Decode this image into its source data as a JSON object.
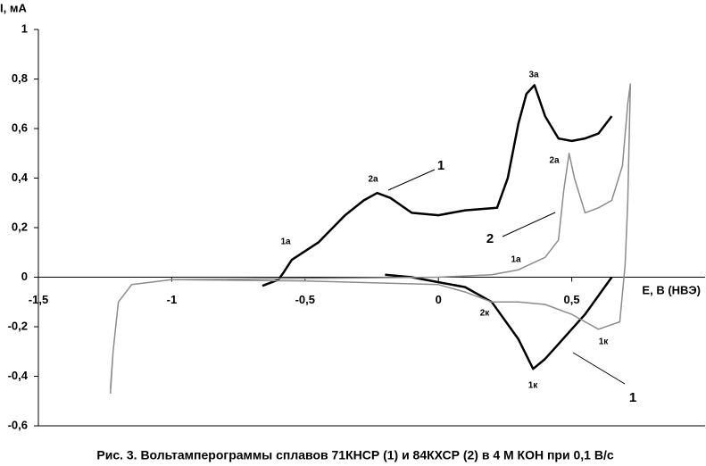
{
  "chart_data": {
    "type": "line",
    "title": "Рис. 3. Вольтамперограммы сплавов 71КНСР (1) и 84КХСР (2) в 4 М КОН при 0,1 В/с",
    "x_label": "E, В (НВЭ)",
    "y_label": "I, мА",
    "xlim": [
      -1.5,
      1.0
    ],
    "ylim": [
      -0.6,
      1
    ],
    "xticks": [
      {
        "value": -1.5,
        "label": "-1,5"
      },
      -1,
      {
        "value": -0.5,
        "label": "-0,5"
      },
      0,
      {
        "value": 0.5,
        "label": "0,5"
      }
    ],
    "yticks": [
      {
        "value": -0.6,
        "label": "-0,6"
      },
      {
        "value": -0.4,
        "label": "-0,4"
      },
      {
        "value": -0.2,
        "label": "-0,2"
      },
      0,
      {
        "value": 0.2,
        "label": "0,2"
      },
      {
        "value": 0.4,
        "label": "0,4"
      },
      {
        "value": 0.6,
        "label": "0,6"
      },
      {
        "value": 0.8,
        "label": "0,8"
      },
      1
    ],
    "series": [
      {
        "color": "#000000",
        "x": [
          -0.66,
          -0.6,
          -0.58,
          -0.55,
          -0.45,
          -0.35,
          -0.28,
          -0.23,
          -0.18,
          -0.1,
          0,
          0.1,
          0.22,
          0.26,
          0.3,
          0.33,
          0.36,
          0.4,
          0.45,
          0.5,
          0.55,
          0.6,
          0.65,
          null,
          0.65,
          0.55,
          0.45,
          0.4,
          0.355,
          0.3,
          0.2,
          0.1,
          0,
          -0.1,
          -0.2
        ],
        "values": [
          -0.035,
          -0.01,
          0.02,
          0.07,
          0.14,
          0.25,
          0.31,
          0.34,
          0.32,
          0.26,
          0.25,
          0.27,
          0.28,
          0.4,
          0.62,
          0.74,
          0.775,
          0.65,
          0.56,
          0.55,
          0.56,
          0.58,
          0.65,
          null,
          0,
          -0.15,
          -0.27,
          -0.33,
          -0.37,
          -0.25,
          -0.1,
          -0.04,
          -0.02,
          0,
          0.01
        ]
      },
      {
        "color": "#8c8c8c",
        "x": [
          -1.23,
          -1.22,
          -1.2,
          -1.15,
          -1,
          -0.5,
          0,
          0.2,
          0.3,
          0.4,
          0.45,
          0.47,
          0.49,
          0.51,
          0.55,
          0.6,
          0.65,
          0.69,
          0.71,
          0.72,
          0.71,
          0.7,
          0.68,
          0.6,
          0.5,
          0.4,
          0.3,
          0.2,
          0.1,
          0,
          -0.5,
          -1,
          -1.15,
          -1.2,
          -1.22,
          -1.23
        ],
        "values": [
          -0.47,
          -0.3,
          -0.1,
          -0.03,
          -0.01,
          -0.005,
          0,
          0.01,
          0.03,
          0.08,
          0.15,
          0.35,
          0.5,
          0.4,
          0.26,
          0.28,
          0.31,
          0.45,
          0.7,
          0.78,
          0.3,
          0.05,
          -0.18,
          -0.21,
          -0.15,
          -0.11,
          -0.1,
          -0.1,
          -0.06,
          -0.03,
          -0.015,
          -0.01,
          -0.03,
          -0.1,
          -0.3,
          -0.45
        ]
      }
    ],
    "annotations": [
      "1а",
      "2а",
      "3а",
      "2а",
      "1а",
      "2к",
      "1к",
      "1к",
      "1",
      "2",
      "1"
    ]
  }
}
